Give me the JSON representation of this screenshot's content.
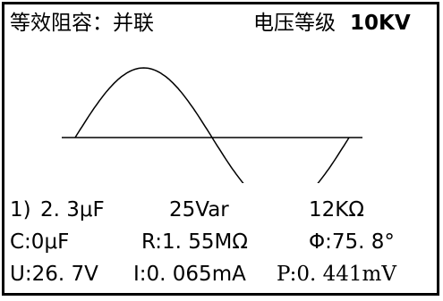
{
  "header": {
    "mode_label": "等效阻容：并联",
    "voltage_label": "电压等级",
    "voltage_value": "10KV"
  },
  "waveform": {
    "type": "sine",
    "cycles": 1,
    "color": "#000000"
  },
  "readings": {
    "line1": {
      "index": "1)",
      "capacitance": "2. 3μF",
      "reactive_power": "25Var",
      "resistance": "12KΩ"
    },
    "line2": {
      "c": "C:0μF",
      "r": "R:1. 55MΩ",
      "phi": "Φ:75. 8°"
    },
    "line3": {
      "u": "U:26. 7V",
      "i": "I:0. 065mA",
      "p": "P:0. 441mV"
    }
  }
}
